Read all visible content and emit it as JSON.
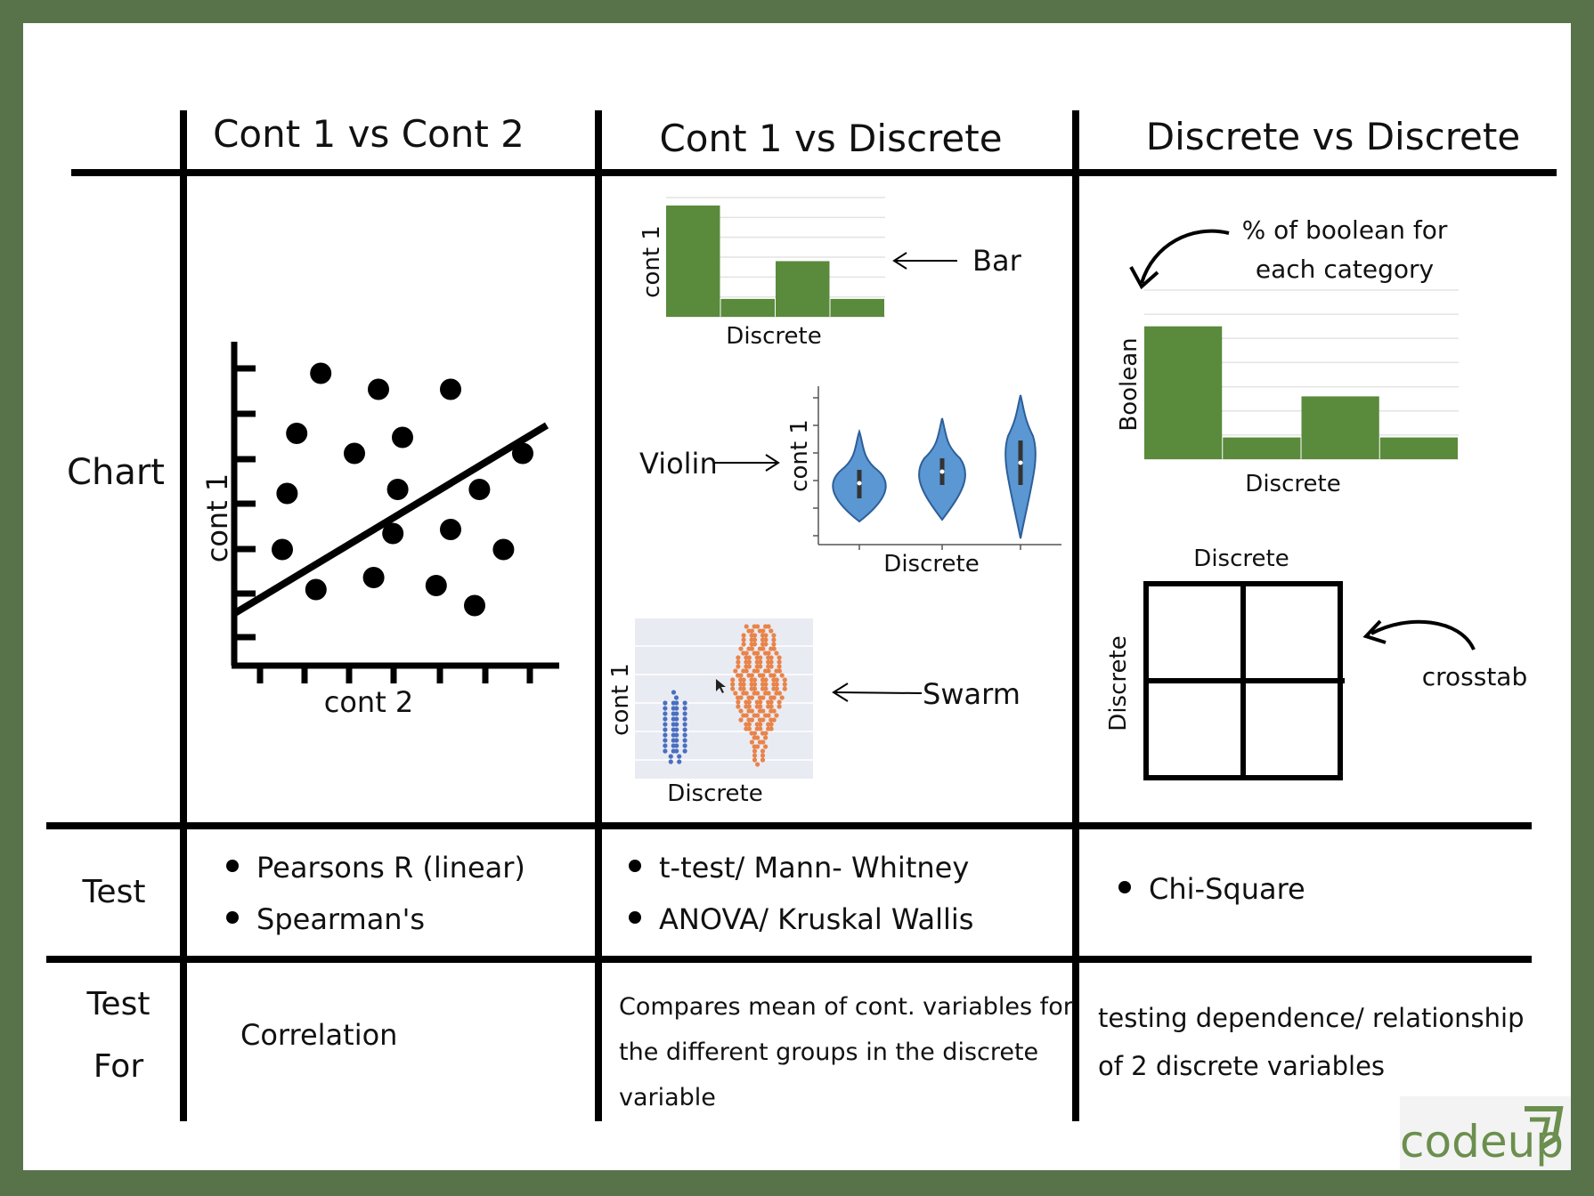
{
  "colors": {
    "frame": "#58734a",
    "bar_fill": "#5a8a3c",
    "violin_fill": "#5b97d2",
    "swarm_blue": "#4a6fc0",
    "swarm_orange": "#e8844a",
    "swarm_bg": "#e9ebf3",
    "logo_gray": "#777777",
    "logo_green": "#6b8f4e"
  },
  "headers": {
    "col1": "Cont 1 vs Cont 2",
    "col2": "Cont 1 vs Discrete",
    "col3": "Discrete vs Discrete"
  },
  "rows": {
    "chart": "Chart",
    "test": "Test",
    "test_for_line1": "Test",
    "test_for_line2": "For"
  },
  "scatter": {
    "xlabel": "cont 2",
    "ylabel": "cont 1",
    "points": [
      {
        "x": 1.8,
        "y": 7.3
      },
      {
        "x": 3.0,
        "y": 6.9
      },
      {
        "x": 4.5,
        "y": 6.9
      },
      {
        "x": 1.3,
        "y": 5.8
      },
      {
        "x": 2.5,
        "y": 5.3
      },
      {
        "x": 3.5,
        "y": 5.7
      },
      {
        "x": 6.0,
        "y": 5.3
      },
      {
        "x": 1.1,
        "y": 4.3
      },
      {
        "x": 3.4,
        "y": 4.4
      },
      {
        "x": 5.1,
        "y": 4.4
      },
      {
        "x": 1.0,
        "y": 2.9
      },
      {
        "x": 3.3,
        "y": 3.3
      },
      {
        "x": 4.5,
        "y": 3.4
      },
      {
        "x": 5.6,
        "y": 2.9
      },
      {
        "x": 1.7,
        "y": 1.9
      },
      {
        "x": 2.9,
        "y": 2.2
      },
      {
        "x": 4.2,
        "y": 2.0
      },
      {
        "x": 5.0,
        "y": 1.5
      }
    ],
    "trend": {
      "x0": 0,
      "y0": 1.3,
      "x1": 6.5,
      "y1": 6.0
    }
  },
  "bar_chart": {
    "ylabel": "cont 1",
    "xlabel": "Discrete",
    "values": [
      5.6,
      0.9,
      2.8,
      0.9
    ],
    "annotation": "Bar"
  },
  "violin_chart": {
    "ylabel": "cont 1",
    "xlabel": "Discrete",
    "annotation": "Violin"
  },
  "swarm_chart": {
    "ylabel": "cont 1",
    "xlabel": "Discrete",
    "annotation": "Swarm"
  },
  "boolean_chart": {
    "ylabel": "Boolean",
    "xlabel": "Discrete",
    "values": [
      5.5,
      0.9,
      2.6,
      0.9
    ],
    "annotation_line1": "% of boolean for",
    "annotation_line2": "each category"
  },
  "crosstab": {
    "top_label": "Discrete",
    "side_label": "Discrete",
    "annotation": "crosstab"
  },
  "tests": {
    "col1": [
      "Pearsons R (linear)",
      "Spearman's"
    ],
    "col2": [
      "t-test/ Mann- Whitney",
      "ANOVA/ Kruskal Wallis"
    ],
    "col3": [
      "Chi-Square"
    ]
  },
  "test_for": {
    "col1": "Correlation",
    "col2_lines": [
      "Compares mean of cont. variables for",
      "the different groups in the discrete",
      "variable"
    ],
    "col3_lines": [
      "testing dependence/ relationship",
      "of 2 discrete variables"
    ]
  },
  "logo": {
    "text": "codeup"
  }
}
